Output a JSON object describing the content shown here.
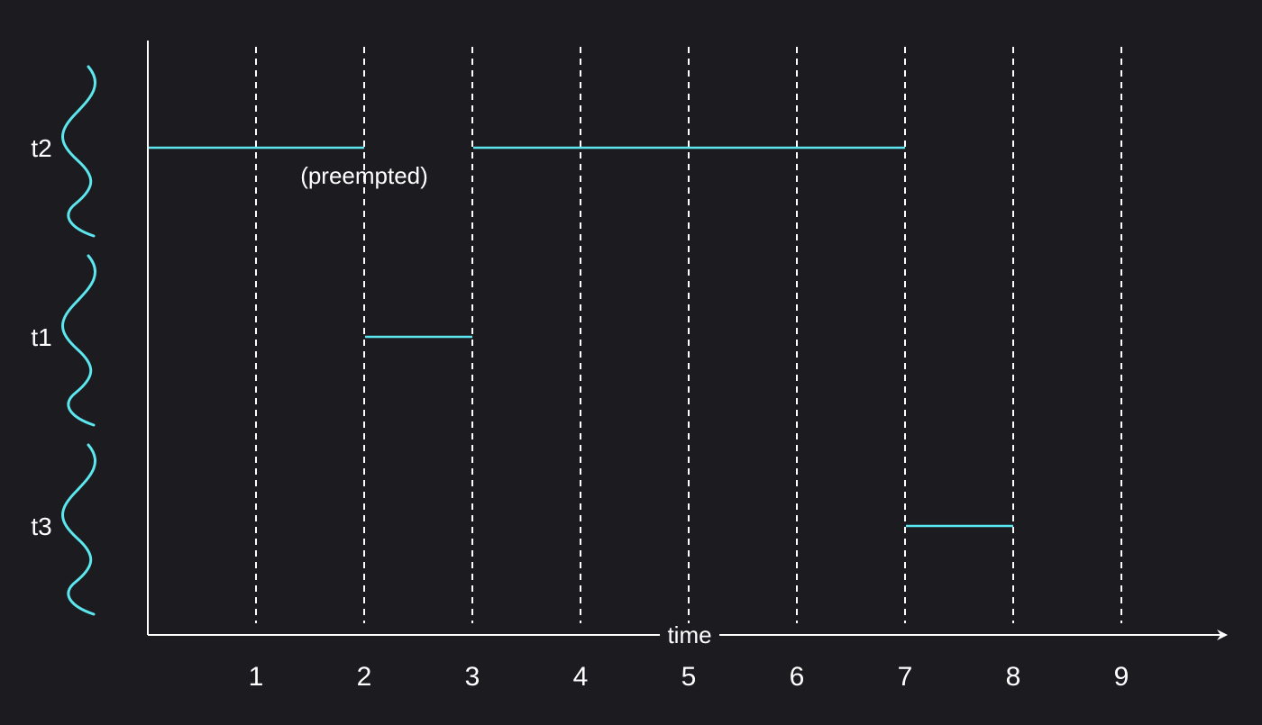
{
  "colors": {
    "background": "#1c1b20",
    "foreground": "#ffffff",
    "accent": "#5ce6ee"
  },
  "diagram": {
    "axis_label": "time",
    "ticks": [
      "1",
      "2",
      "3",
      "4",
      "5",
      "6",
      "7",
      "8",
      "9"
    ],
    "threads": [
      {
        "label": "t2",
        "segments": [
          [
            0,
            2
          ],
          [
            3,
            7
          ]
        ]
      },
      {
        "label": "t1",
        "segments": [
          [
            2,
            3
          ]
        ]
      },
      {
        "label": "t3",
        "segments": [
          [
            7,
            8
          ]
        ]
      }
    ],
    "annotation": {
      "text": "(preempted)",
      "at_time": 2,
      "thread": "t2"
    }
  }
}
